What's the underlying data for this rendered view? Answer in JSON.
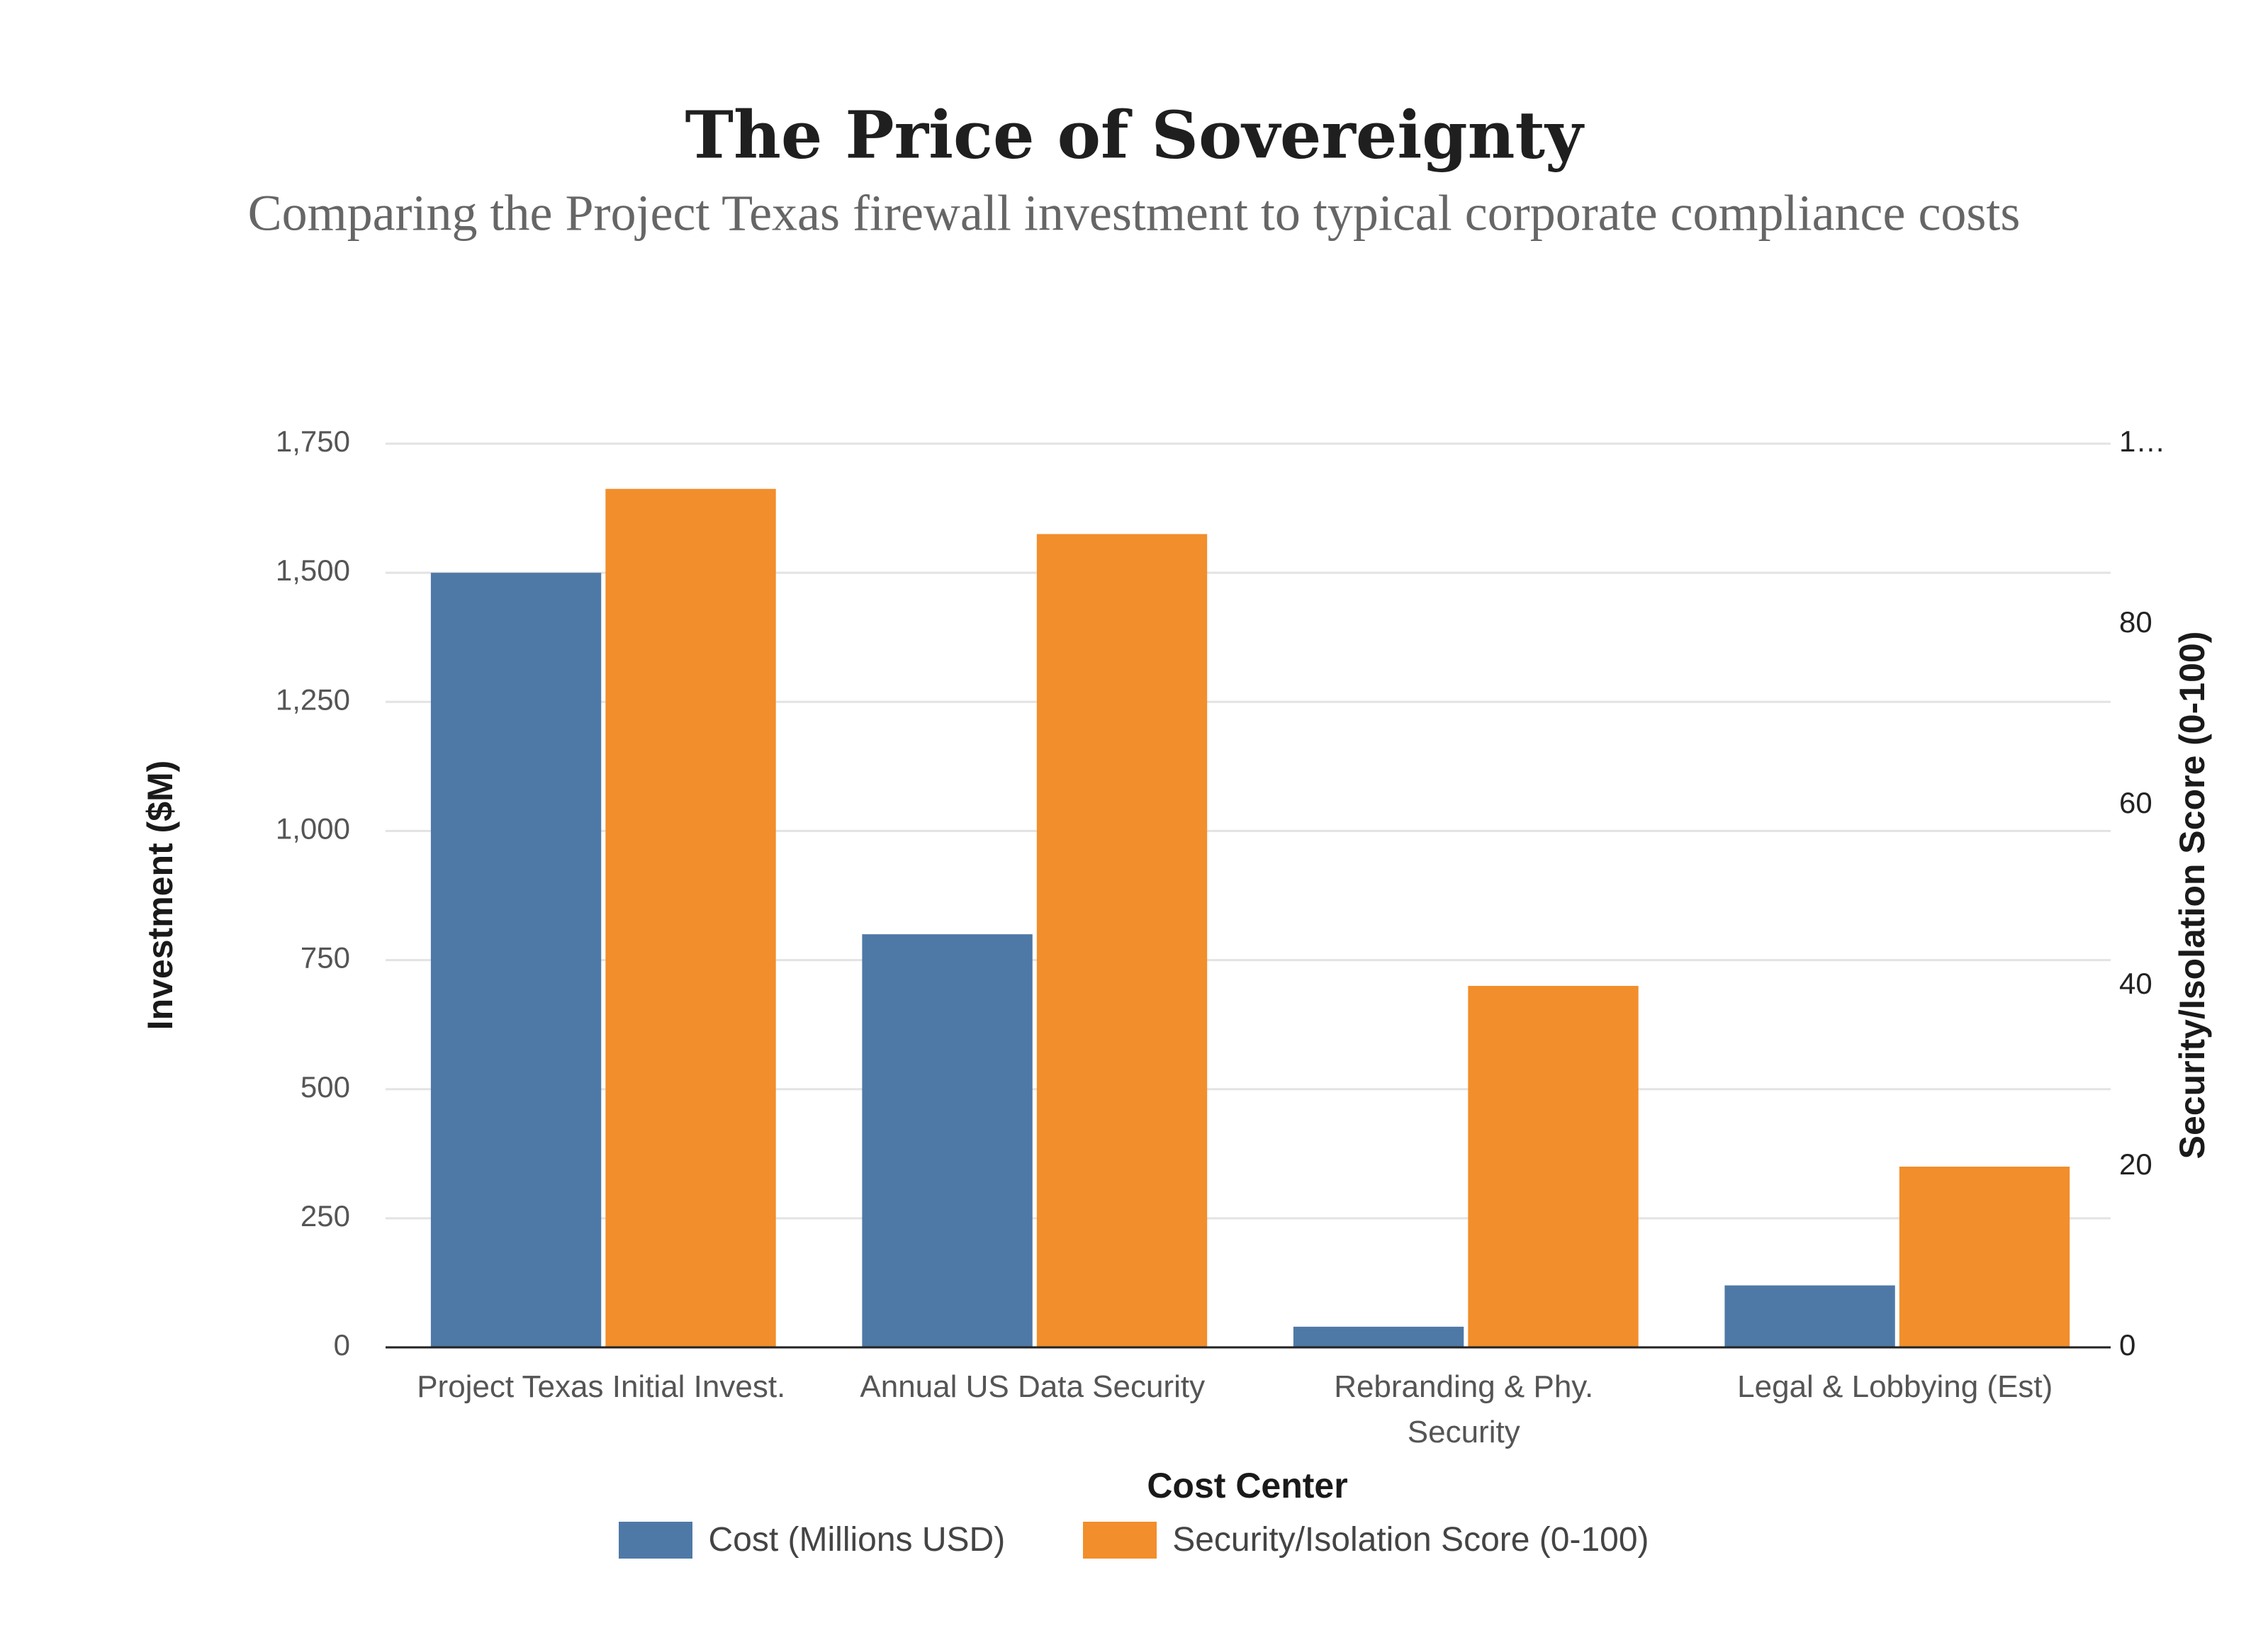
{
  "chart_data": {
    "type": "bar",
    "title": "The Price of Sovereignty",
    "subtitle": "Comparing the Project Texas firewall investment to typical corporate compliance costs",
    "x_label": "Cost Center",
    "y_label": "Investment ($M)",
    "y2_label": "Security/Isolation Score (0-100)",
    "categories": [
      "Project Texas Initial Invest.",
      "Annual US Data Security",
      "Rebranding & Phy. Security",
      "Legal & Lobbying (Est)"
    ],
    "series": [
      {
        "name": "Cost (Millions USD)",
        "color": "#4e79a7",
        "values": [
          1500,
          800,
          40,
          120
        ]
      },
      {
        "name": "Security/Isolation Score (0-100)",
        "color": "#f28e2b",
        "values": [
          95,
          90,
          40,
          20
        ],
        "axis": "y2"
      }
    ],
    "ylim": [
      0,
      1750
    ],
    "yticks": [
      0,
      250,
      500,
      750,
      {
        "value": 1000,
        "label": "1,000"
      },
      {
        "value": 1250,
        "label": "1,250"
      },
      {
        "value": 1500,
        "label": "1,500"
      },
      {
        "value": 1750,
        "label": "1,750"
      }
    ],
    "y2lim": [
      0,
      100
    ],
    "y2ticks": [
      0,
      20,
      40,
      60,
      80,
      {
        "value": 100,
        "label": "1…"
      }
    ],
    "grid": true,
    "legend": "bottom"
  }
}
